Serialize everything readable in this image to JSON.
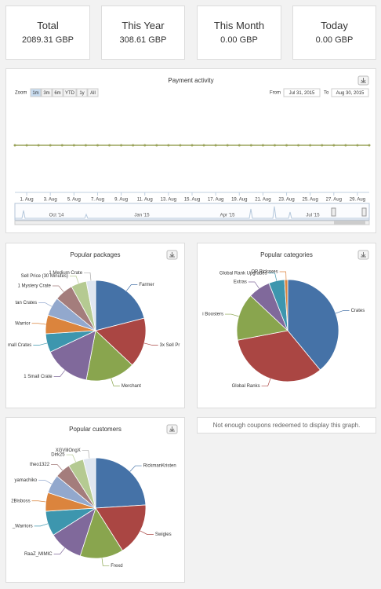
{
  "stats": [
    {
      "label": "Total",
      "value": "2089.31 GBP"
    },
    {
      "label": "This Year",
      "value": "308.61 GBP"
    },
    {
      "label": "This Month",
      "value": "0.00 GBP"
    },
    {
      "label": "Today",
      "value": "0.00 GBP"
    }
  ],
  "chart_data": [
    {
      "type": "line",
      "title": "Payment activity",
      "zoom_label": "Zoom",
      "zoom_buttons": [
        "1m",
        "3m",
        "6m",
        "YTD",
        "1y",
        "All"
      ],
      "from_label": "From",
      "from_date": "Jul 31, 2015",
      "to_label": "To",
      "to_date": "Aug 30, 2015",
      "categories": [
        null,
        "1. Aug",
        null,
        "3. Aug",
        null,
        "5. Aug",
        null,
        "7. Aug",
        null,
        "9. Aug",
        null,
        "11. Aug",
        null,
        "13. Aug",
        null,
        "15. Aug",
        null,
        "17. Aug",
        null,
        "19. Aug",
        null,
        "21. Aug",
        null,
        "23. Aug",
        null,
        "25. Aug",
        null,
        "27. Aug",
        null,
        "29. Aug",
        null
      ],
      "series": [
        {
          "color": "#9aa35a",
          "values": [
            0,
            0,
            0,
            0,
            0,
            0,
            0,
            0,
            0,
            0,
            0,
            0,
            0,
            0,
            0,
            0,
            0,
            0,
            0,
            0,
            0,
            0,
            0,
            0,
            0,
            0,
            0,
            0,
            0,
            0,
            0
          ]
        }
      ],
      "ylim": [
        -1,
        1
      ],
      "navigator_labels": [
        "Oct '14",
        "Jan '15",
        "Apr '15",
        "Jul '15"
      ]
    },
    {
      "type": "pie",
      "title": "Popular packages",
      "categories": [
        "Farmer",
        "3x Sell Pr",
        "Merchant",
        "1 Small Crate",
        "mall Crates",
        "Warrior",
        "tan Crates",
        "1 Mystery Crate",
        "Sell Price (30 Minutes)",
        "1 Medium Crate"
      ],
      "values": [
        21,
        16,
        16,
        15,
        6,
        6,
        6,
        6,
        5,
        3
      ],
      "colors": [
        "#4572a7",
        "#aa4643",
        "#89a54e",
        "#80699b",
        "#3d96ae",
        "#db843d",
        "#92a8cd",
        "#a47d7c",
        "#b5ca92",
        "#dfe6f0"
      ]
    },
    {
      "type": "pie",
      "title": "Popular categories",
      "categories": [
        "Crates",
        "Global Ranks",
        "i Boosters",
        "Extras",
        "Global Rank Upgrades",
        "OP Pickaxes"
      ],
      "values": [
        39,
        33,
        15,
        7,
        5,
        1
      ],
      "colors": [
        "#4572a7",
        "#aa4643",
        "#89a54e",
        "#80699b",
        "#3d96ae",
        "#db843d"
      ]
    },
    {
      "type": "pie",
      "title": "Popular customers",
      "categories": [
        "RickmanKristen",
        "Swigles",
        "Frexd",
        "RaaZ_MIMIC",
        "_Warriors",
        "2Bisboss",
        "yamachiko",
        "theo1322",
        "Dirk25",
        "XGVlilOngX"
      ],
      "values": [
        24,
        17,
        14,
        11,
        8,
        6,
        6,
        5,
        5,
        4
      ],
      "colors": [
        "#4572a7",
        "#aa4643",
        "#89a54e",
        "#80699b",
        "#3d96ae",
        "#db843d",
        "#92a8cd",
        "#a47d7c",
        "#b5ca92",
        "#dfe6f0"
      ]
    }
  ],
  "coupons_message": "Not enough coupons redeemed to display this graph."
}
